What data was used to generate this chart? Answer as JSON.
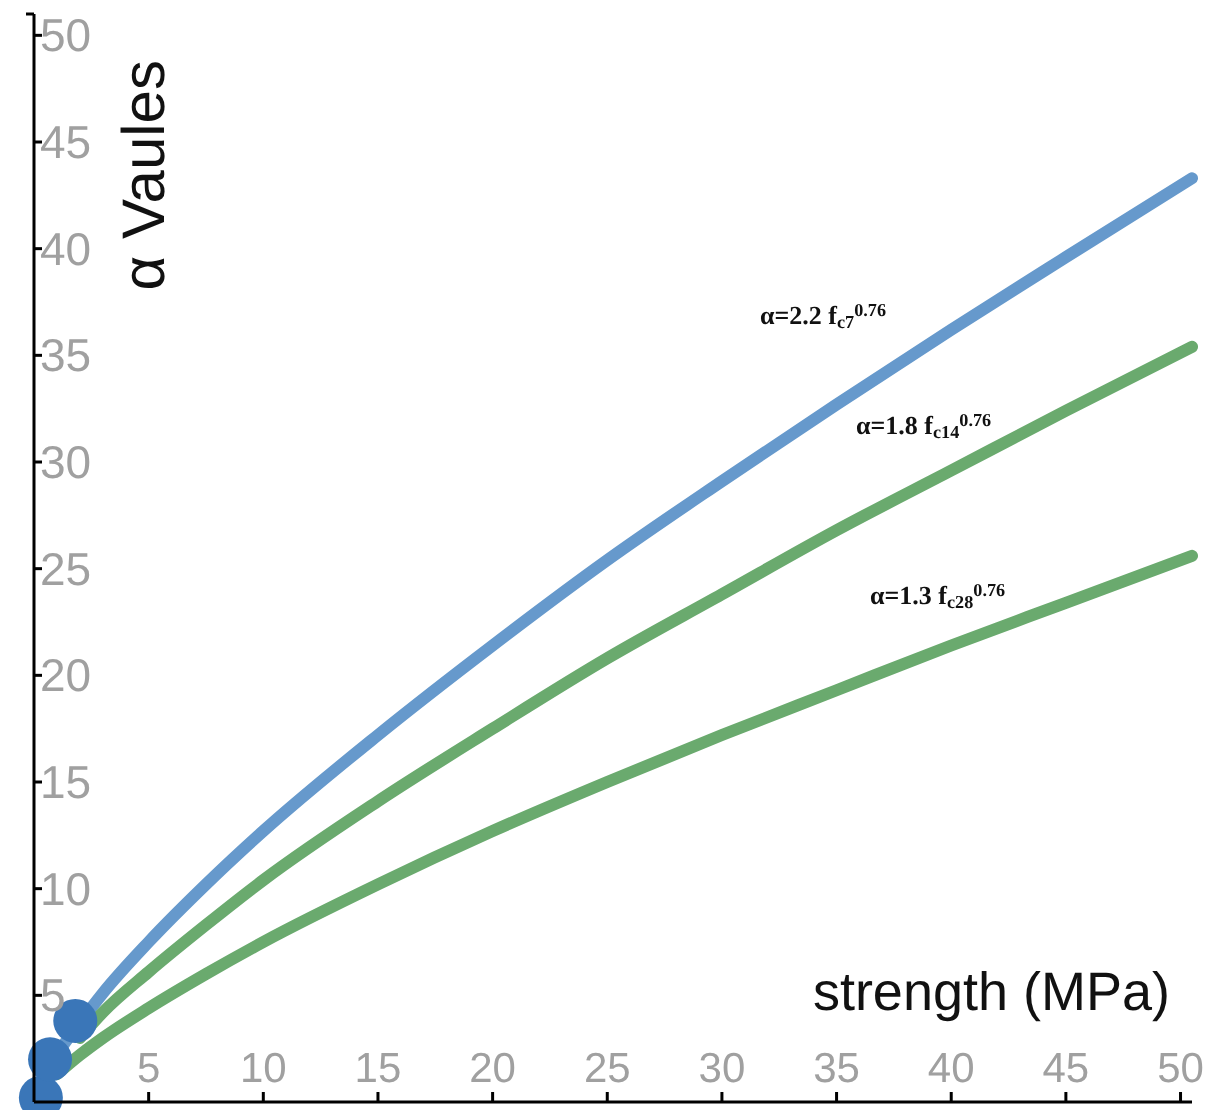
{
  "chart_data": {
    "type": "line",
    "xlabel": "strength (MPa)",
    "ylabel": "α  Vaules",
    "x": [
      0,
      1,
      2,
      3,
      5,
      7.5,
      10,
      15,
      20,
      25,
      30,
      35,
      40,
      45,
      50.5
    ],
    "series": [
      {
        "color": "#6699cc",
        "values": [
          0,
          2.2,
          3.7,
          5.1,
          7.5,
          10.2,
          12.7,
          17.2,
          21.4,
          25.4,
          29.1,
          32.7,
          36.2,
          39.6,
          43.3
        ]
      },
      {
        "color": "#6aaa6e",
        "values": [
          null,
          null,
          3.0,
          4.2,
          6.1,
          8.3,
          10.4,
          14.1,
          17.5,
          20.8,
          23.8,
          26.8,
          29.6,
          32.4,
          35.4
        ]
      },
      {
        "color": "#6aaa6e",
        "values": [
          null,
          1.3,
          2.2,
          3.0,
          4.4,
          6.0,
          7.5,
          10.2,
          12.7,
          15.0,
          17.2,
          19.3,
          21.4,
          23.4,
          25.6
        ]
      },
      {
        "type": "scatter",
        "color": "#3a76b8",
        "marker": "circle",
        "x": [
          0.3,
          0.7,
          1.8
        ],
        "values": [
          0.2,
          2.0,
          3.8
        ]
      }
    ],
    "xlim": [
      0,
      50.5
    ],
    "ylim": [
      0,
      51
    ],
    "xticks": [
      5,
      10,
      15,
      20,
      25,
      30,
      35,
      40,
      45,
      50
    ],
    "yticks": [
      5,
      10,
      15,
      20,
      25,
      30,
      35,
      40,
      45,
      50
    ],
    "grid": false,
    "annotations": [
      "α=2.2 f$_{c7}$$^{0.76}$",
      "α=1.8 f$_{c14}$$^{0.76}$",
      "α=1.3 f$_{c28}$$^{0.76}$"
    ]
  }
}
